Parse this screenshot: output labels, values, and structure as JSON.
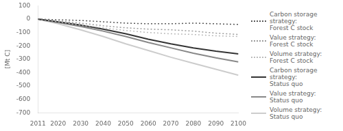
{
  "chart_data": {
    "type": "line",
    "x": [
      2011,
      2020,
      2030,
      2040,
      2050,
      2060,
      2070,
      2080,
      2090,
      2100
    ],
    "series": [
      {
        "name": "Carbon storage strategy:\nForest C stock",
        "color": "#555555",
        "line_style": "dotted",
        "values": [
          0,
          -5,
          -10,
          -20,
          -30,
          -35,
          -35,
          -30,
          -35,
          -40
        ]
      },
      {
        "name": "Value strategy:\nForest C stock",
        "color": "#999999",
        "line_style": "dotted",
        "values": [
          0,
          -15,
          -30,
          -50,
          -65,
          -75,
          -80,
          -90,
          -105,
          -115
        ]
      },
      {
        "name": "Volume strategy:\nForest C stock",
        "color": "#bbbbbb",
        "line_style": "dotted",
        "values": [
          0,
          -20,
          -45,
          -65,
          -85,
          -100,
          -110,
          -115,
          -125,
          -130
        ]
      },
      {
        "name": "Carbon storage strategy:\nStatus quo",
        "color": "#333333",
        "line_style": "solid",
        "values": [
          0,
          -20,
          -45,
          -75,
          -110,
          -150,
          -185,
          -215,
          -240,
          -260
        ]
      },
      {
        "name": "Value strategy:\nStatus quo",
        "color": "#888888",
        "line_style": "solid",
        "values": [
          0,
          -25,
          -55,
          -90,
          -130,
          -175,
          -215,
          -255,
          -290,
          -320
        ]
      },
      {
        "name": "Volume strategy:\nStatus quo",
        "color": "#cccccc",
        "line_style": "solid",
        "values": [
          0,
          -35,
          -80,
          -130,
          -185,
          -235,
          -285,
          -330,
          -375,
          -420
        ]
      }
    ],
    "ylabel": "[Mt C]",
    "xlim": [
      2011,
      2100
    ],
    "xticks": [
      2011,
      2020,
      2030,
      2040,
      2050,
      2060,
      2070,
      2080,
      2090,
      2100
    ],
    "ylim": [
      -700,
      100
    ],
    "yticks": [
      100,
      0,
      -100,
      -200,
      -300,
      -400,
      -500,
      -600,
      -700
    ],
    "grid": false,
    "legend": "right"
  }
}
